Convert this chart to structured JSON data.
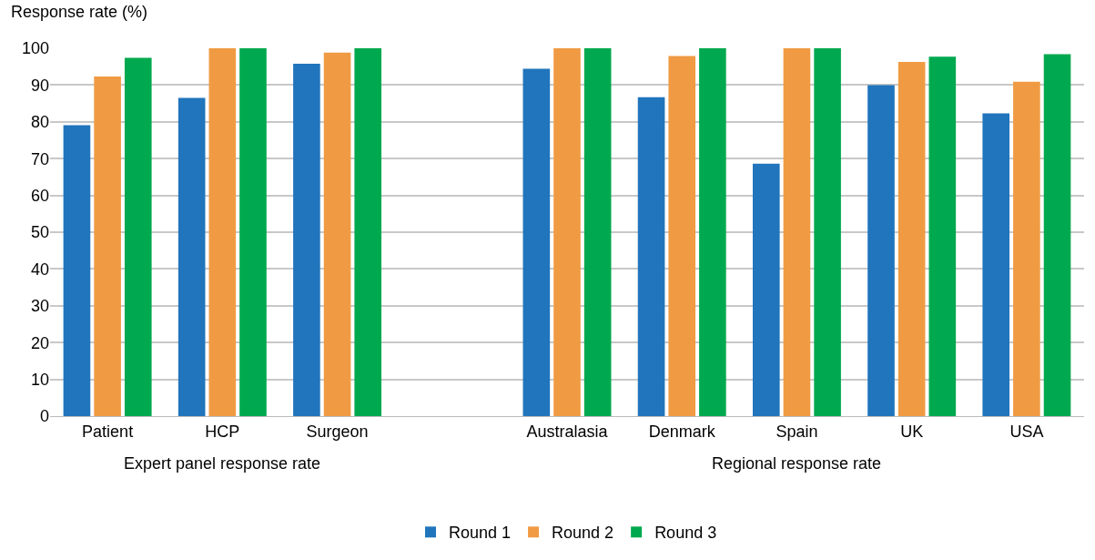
{
  "chart_data": {
    "type": "bar",
    "ylabel": "Response rate (%)",
    "categories": [
      "Patient",
      "HCP",
      "Surgeon",
      null,
      "Australasia",
      "Denmark",
      "Spain",
      "UK",
      "USA"
    ],
    "series": [
      {
        "name": "Round 1",
        "color": "#2075bc",
        "values": [
          79.1,
          86.5,
          95.8,
          null,
          94.4,
          86.7,
          68.6,
          90.0,
          82.3
        ]
      },
      {
        "name": "Round 2",
        "color": "#f09b43",
        "values": [
          92.3,
          100,
          98.8,
          null,
          100,
          97.9,
          100,
          96.3,
          90.9
        ]
      },
      {
        "name": "Round 3",
        "color": "#00a94f",
        "values": [
          97.4,
          100,
          100,
          null,
          100,
          100,
          100,
          97.7,
          98.4
        ]
      }
    ],
    "ylim": [
      0,
      100
    ],
    "yticks": [
      0,
      10,
      20,
      30,
      40,
      50,
      60,
      70,
      80,
      90,
      100
    ],
    "grid": "y",
    "legend": "bottom",
    "annotations": [
      "Expert panel response rate",
      "Regional response rate"
    ]
  }
}
